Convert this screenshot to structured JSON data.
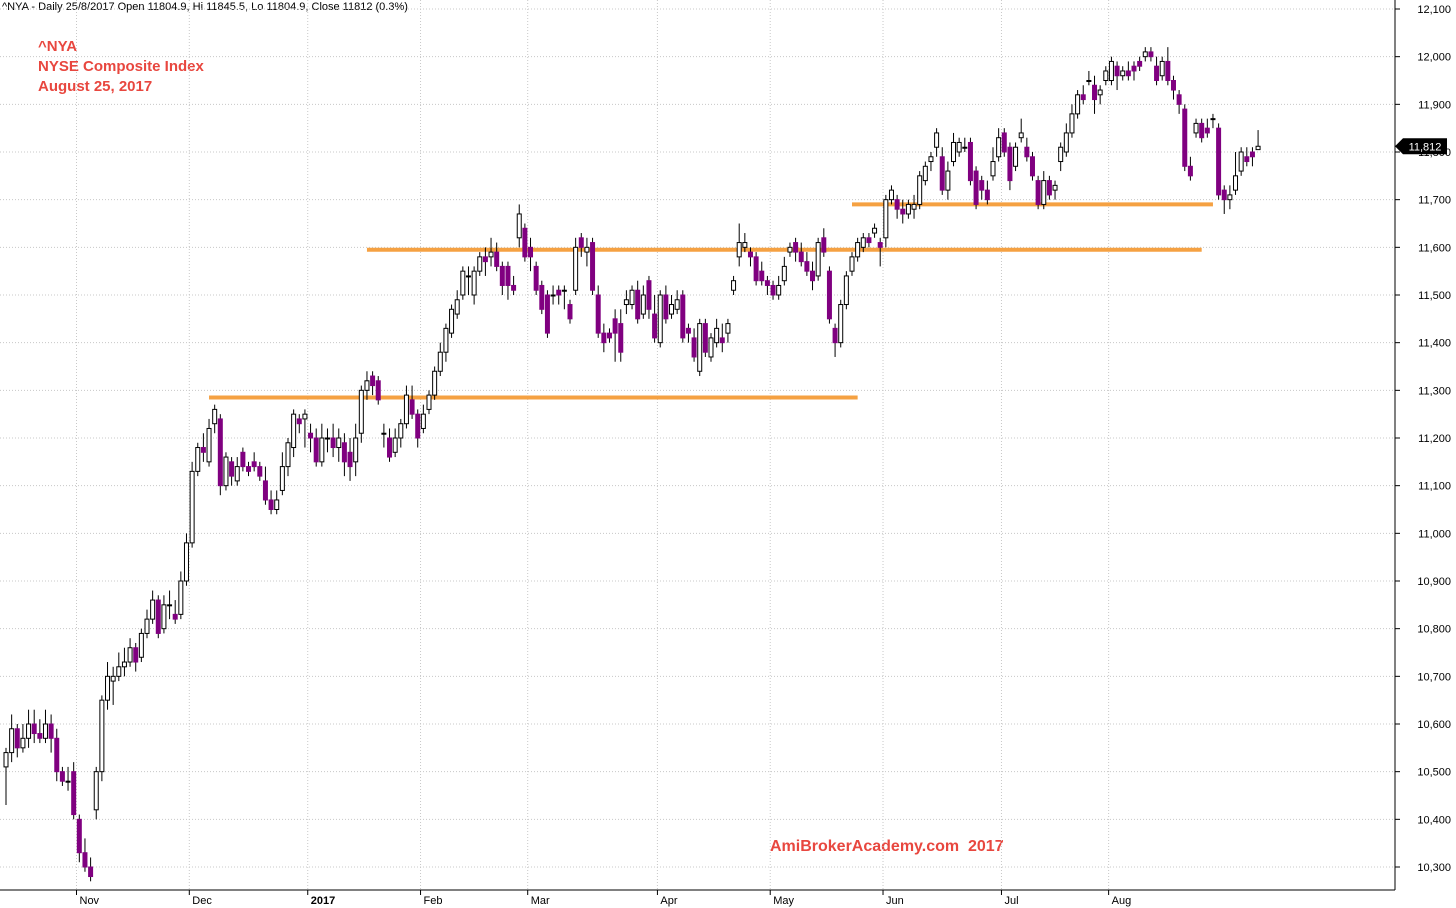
{
  "header": {
    "info_line": "^NYA - Daily 25/8/2017 Open 11804.9, Hi 11845.5, Lo 11804.9, Close 11812 (0.3%)"
  },
  "title_block": {
    "symbol": "^NYA",
    "name": "NYSE Composite Index",
    "date": "August 25, 2017"
  },
  "watermark": "AmiBrokerAcademy.com  2017",
  "last_price_label": "11,812",
  "chart_data": {
    "type": "candlestick",
    "period": "Daily",
    "xlabel": "",
    "ylabel": "",
    "x_tick_labels": [
      "Nov",
      "Dec",
      "2017",
      "Feb",
      "Mar",
      "Apr",
      "May",
      "Jun",
      "Jul",
      "Aug"
    ],
    "y_tick_labels": [
      "10,300",
      "10,400",
      "10,500",
      "10,600",
      "10,700",
      "10,800",
      "10,900",
      "11,000",
      "11,100",
      "11,200",
      "11,300",
      "11,400",
      "11,500",
      "11,600",
      "11,700",
      "11,800",
      "11,900",
      "12,000",
      "12,100"
    ],
    "ylim": [
      10275,
      12105
    ],
    "grid": true,
    "colors": {
      "up_candle": "#ffffff",
      "down_candle": "#800080",
      "outline": "#000000",
      "support_lines": "#f5a142",
      "title_text": "#e8473f"
    },
    "support_resistance_levels": [
      {
        "value": 11285,
        "from": "Dec 2016",
        "to": "May 2017"
      },
      {
        "value": 11595,
        "from": "Jan 2017",
        "to": "Aug 2017"
      },
      {
        "value": 11690,
        "from": "May 2017",
        "to": "Aug 2017"
      }
    ],
    "last_close": 11812,
    "candles": [
      [
        10510,
        10540,
        10430,
        10550
      ],
      [
        10540,
        10590,
        10520,
        10620
      ],
      [
        10590,
        10550,
        10530,
        10600
      ],
      [
        10550,
        10570,
        10540,
        10600
      ],
      [
        10570,
        10600,
        10550,
        10630
      ],
      [
        10600,
        10580,
        10560,
        10630
      ],
      [
        10580,
        10570,
        10560,
        10610
      ],
      [
        10570,
        10600,
        10560,
        10630
      ],
      [
        10600,
        10570,
        10540,
        10620
      ],
      [
        10570,
        10500,
        10480,
        10590
      ],
      [
        10500,
        10480,
        10470,
        10510
      ],
      [
        10480,
        10480,
        10460,
        10510
      ],
      [
        10500,
        10410,
        10400,
        10520
      ],
      [
        10400,
        10330,
        10310,
        10410
      ],
      [
        10330,
        10300,
        10290,
        10360
      ],
      [
        10300,
        10280,
        10270,
        10320
      ],
      [
        10420,
        10500,
        10400,
        10510
      ],
      [
        10500,
        10650,
        10480,
        10660
      ],
      [
        10650,
        10700,
        10630,
        10730
      ],
      [
        10690,
        10700,
        10640,
        10720
      ],
      [
        10700,
        10720,
        10690,
        10750
      ],
      [
        10720,
        10730,
        10700,
        10760
      ],
      [
        10730,
        10760,
        10720,
        10780
      ],
      [
        10760,
        10730,
        10710,
        10770
      ],
      [
        10740,
        10790,
        10730,
        10800
      ],
      [
        10790,
        10820,
        10780,
        10840
      ],
      [
        10820,
        10860,
        10810,
        10880
      ],
      [
        10860,
        10790,
        10780,
        10870
      ],
      [
        10800,
        10850,
        10790,
        10870
      ],
      [
        10850,
        10850,
        10820,
        10880
      ],
      [
        10830,
        10820,
        10810,
        10860
      ],
      [
        10830,
        10900,
        10820,
        10920
      ],
      [
        10900,
        10980,
        10890,
        11000
      ],
      [
        10980,
        11130,
        10970,
        11150
      ],
      [
        11130,
        11180,
        11120,
        11190
      ],
      [
        11180,
        11170,
        11150,
        11210
      ],
      [
        11150,
        11220,
        11140,
        11240
      ],
      [
        11230,
        11260,
        11210,
        11270
      ],
      [
        11240,
        11100,
        11080,
        11250
      ],
      [
        11100,
        11160,
        11090,
        11170
      ],
      [
        11150,
        11120,
        11100,
        11160
      ],
      [
        11110,
        11140,
        11100,
        11160
      ],
      [
        11170,
        11140,
        11130,
        11180
      ],
      [
        11140,
        11130,
        11120,
        11150
      ],
      [
        11150,
        11140,
        11130,
        11170
      ],
      [
        11140,
        11120,
        11110,
        11150
      ],
      [
        11110,
        11070,
        11060,
        11140
      ],
      [
        11070,
        11050,
        11040,
        11090
      ],
      [
        11050,
        11070,
        11040,
        11090
      ],
      [
        11090,
        11140,
        11080,
        11170
      ],
      [
        11140,
        11190,
        11120,
        11200
      ],
      [
        11180,
        11250,
        11160,
        11260
      ],
      [
        11240,
        11230,
        11210,
        11250
      ],
      [
        11240,
        11250,
        11180,
        11260
      ],
      [
        11210,
        11200,
        11170,
        11230
      ],
      [
        11200,
        11150,
        11140,
        11220
      ],
      [
        11150,
        11200,
        11140,
        11230
      ],
      [
        11200,
        11200,
        11170,
        11220
      ],
      [
        11200,
        11180,
        11160,
        11230
      ],
      [
        11180,
        11200,
        11150,
        11220
      ],
      [
        11190,
        11150,
        11120,
        11210
      ],
      [
        11170,
        11140,
        11110,
        11200
      ],
      [
        11150,
        11200,
        11120,
        11230
      ],
      [
        11210,
        11300,
        11190,
        11310
      ],
      [
        11300,
        11320,
        11280,
        11340
      ],
      [
        11330,
        11310,
        11290,
        11340
      ],
      [
        11320,
        11280,
        11270,
        11330
      ],
      [
        11210,
        11210,
        11180,
        11230
      ],
      [
        11200,
        11160,
        11150,
        11220
      ],
      [
        11170,
        11200,
        11160,
        11220
      ],
      [
        11200,
        11230,
        11180,
        11240
      ],
      [
        11230,
        11290,
        11220,
        11310
      ],
      [
        11280,
        11250,
        11240,
        11310
      ],
      [
        11250,
        11200,
        11180,
        11260
      ],
      [
        11220,
        11250,
        11210,
        11270
      ],
      [
        11260,
        11290,
        11250,
        11300
      ],
      [
        11290,
        11340,
        11280,
        11350
      ],
      [
        11340,
        11380,
        11330,
        11400
      ],
      [
        11380,
        11430,
        11360,
        11440
      ],
      [
        11420,
        11470,
        11410,
        11480
      ],
      [
        11460,
        11490,
        11450,
        11510
      ],
      [
        11500,
        11550,
        11490,
        11560
      ],
      [
        11540,
        11540,
        11500,
        11560
      ],
      [
        11500,
        11550,
        11480,
        11560
      ],
      [
        11550,
        11580,
        11540,
        11590
      ],
      [
        11580,
        11570,
        11540,
        11600
      ],
      [
        11580,
        11590,
        11560,
        11620
      ],
      [
        11590,
        11560,
        11550,
        11610
      ],
      [
        11560,
        11520,
        11500,
        11570
      ],
      [
        11560,
        11520,
        11490,
        11570
      ],
      [
        11520,
        11510,
        11500,
        11540
      ],
      [
        11620,
        11670,
        11600,
        11690
      ],
      [
        11640,
        11580,
        11570,
        11650
      ],
      [
        11600,
        11580,
        11550,
        11620
      ],
      [
        11560,
        11510,
        11500,
        11570
      ],
      [
        11520,
        11470,
        11460,
        11530
      ],
      [
        11500,
        11420,
        11410,
        11510
      ],
      [
        11500,
        11500,
        11480,
        11520
      ],
      [
        11510,
        11500,
        11480,
        11520
      ],
      [
        11510,
        11510,
        11470,
        11520
      ],
      [
        11480,
        11450,
        11440,
        11490
      ],
      [
        11510,
        11600,
        11500,
        11620
      ],
      [
        11620,
        11600,
        11580,
        11630
      ],
      [
        11590,
        11600,
        11560,
        11620
      ],
      [
        11610,
        11510,
        11500,
        11620
      ],
      [
        11500,
        11420,
        11410,
        11520
      ],
      [
        11420,
        11400,
        11380,
        11440
      ],
      [
        11420,
        11410,
        11400,
        11430
      ],
      [
        11450,
        11420,
        11360,
        11470
      ],
      [
        11440,
        11380,
        11360,
        11470
      ],
      [
        11480,
        11490,
        11460,
        11510
      ],
      [
        11480,
        11510,
        11470,
        11520
      ],
      [
        11510,
        11450,
        11440,
        11530
      ],
      [
        11460,
        11500,
        11450,
        11520
      ],
      [
        11530,
        11470,
        11450,
        11540
      ],
      [
        11460,
        11410,
        11400,
        11500
      ],
      [
        11400,
        11500,
        11390,
        11510
      ],
      [
        11500,
        11450,
        11440,
        11520
      ],
      [
        11460,
        11480,
        11450,
        11500
      ],
      [
        11470,
        11490,
        11460,
        11510
      ],
      [
        11500,
        11410,
        11400,
        11510
      ],
      [
        11430,
        11420,
        11400,
        11440
      ],
      [
        11410,
        11370,
        11360,
        11430
      ],
      [
        11340,
        11440,
        11330,
        11450
      ],
      [
        11440,
        11380,
        11370,
        11450
      ],
      [
        11370,
        11410,
        11360,
        11420
      ],
      [
        11400,
        11430,
        11390,
        11450
      ],
      [
        11410,
        11400,
        11380,
        11440
      ],
      [
        11420,
        11440,
        11400,
        11450
      ],
      [
        11510,
        11530,
        11500,
        11540
      ],
      [
        11580,
        11610,
        11560,
        11650
      ],
      [
        11600,
        11610,
        11590,
        11630
      ],
      [
        11590,
        11580,
        11560,
        11600
      ],
      [
        11580,
        11530,
        11520,
        11590
      ],
      [
        11550,
        11530,
        11520,
        11570
      ],
      [
        11530,
        11520,
        11500,
        11540
      ],
      [
        11520,
        11500,
        11490,
        11530
      ],
      [
        11500,
        11520,
        11490,
        11540
      ],
      [
        11530,
        11560,
        11520,
        11580
      ],
      [
        11590,
        11600,
        11580,
        11610
      ],
      [
        11610,
        11590,
        11570,
        11620
      ],
      [
        11590,
        11570,
        11560,
        11610
      ],
      [
        11570,
        11550,
        11540,
        11590
      ],
      [
        11550,
        11530,
        11510,
        11570
      ],
      [
        11540,
        11610,
        11530,
        11620
      ],
      [
        11620,
        11590,
        11580,
        11640
      ],
      [
        11550,
        11450,
        11440,
        11560
      ],
      [
        11430,
        11400,
        11370,
        11440
      ],
      [
        11400,
        11480,
        11390,
        11490
      ],
      [
        11480,
        11540,
        11470,
        11550
      ],
      [
        11550,
        11580,
        11540,
        11590
      ],
      [
        11580,
        11610,
        11570,
        11620
      ],
      [
        11600,
        11620,
        11590,
        11630
      ],
      [
        11620,
        11610,
        11600,
        11630
      ],
      [
        11630,
        11640,
        11620,
        11650
      ],
      [
        11610,
        11600,
        11560,
        11620
      ],
      [
        11620,
        11700,
        11600,
        11710
      ],
      [
        11700,
        11720,
        11690,
        11730
      ],
      [
        11700,
        11680,
        11660,
        11710
      ],
      [
        11680,
        11670,
        11650,
        11700
      ],
      [
        11670,
        11690,
        11660,
        11700
      ],
      [
        11680,
        11690,
        11660,
        11710
      ],
      [
        11690,
        11750,
        11680,
        11760
      ],
      [
        11740,
        11770,
        11730,
        11780
      ],
      [
        11780,
        11790,
        11760,
        11800
      ],
      [
        11810,
        11840,
        11790,
        11850
      ],
      [
        11790,
        11720,
        11710,
        11810
      ],
      [
        11720,
        11760,
        11700,
        11780
      ],
      [
        11780,
        11820,
        11770,
        11840
      ],
      [
        11800,
        11820,
        11790,
        11830
      ],
      [
        11810,
        11810,
        11800,
        11830
      ],
      [
        11820,
        11740,
        11730,
        11830
      ],
      [
        11760,
        11690,
        11680,
        11770
      ],
      [
        11740,
        11720,
        11700,
        11750
      ],
      [
        11720,
        11700,
        11690,
        11740
      ],
      [
        11750,
        11780,
        11740,
        11810
      ],
      [
        11790,
        11830,
        11780,
        11850
      ],
      [
        11840,
        11800,
        11790,
        11850
      ],
      [
        11810,
        11740,
        11720,
        11820
      ],
      [
        11770,
        11810,
        11760,
        11820
      ],
      [
        11830,
        11840,
        11820,
        11870
      ],
      [
        11810,
        11790,
        11780,
        11830
      ],
      [
        11790,
        11750,
        11740,
        11800
      ],
      [
        11740,
        11690,
        11680,
        11750
      ],
      [
        11690,
        11740,
        11680,
        11760
      ],
      [
        11740,
        11710,
        11700,
        11750
      ],
      [
        11720,
        11730,
        11700,
        11740
      ],
      [
        11780,
        11810,
        11760,
        11820
      ],
      [
        11800,
        11840,
        11790,
        11860
      ],
      [
        11840,
        11880,
        11830,
        11900
      ],
      [
        11880,
        11920,
        11870,
        11930
      ],
      [
        11920,
        11910,
        11900,
        11940
      ],
      [
        11950,
        11950,
        11940,
        11970
      ],
      [
        11940,
        11910,
        11880,
        11960
      ],
      [
        11920,
        11930,
        11900,
        11940
      ],
      [
        11950,
        11970,
        11940,
        11980
      ],
      [
        11950,
        11990,
        11940,
        12000
      ],
      [
        11980,
        11960,
        11930,
        11990
      ],
      [
        11960,
        11970,
        11950,
        11980
      ],
      [
        11970,
        11960,
        11950,
        11990
      ],
      [
        11980,
        11970,
        11950,
        11990
      ],
      [
        11990,
        11980,
        11970,
        12000
      ],
      [
        12000,
        12010,
        11990,
        12020
      ],
      [
        12010,
        12000,
        11990,
        12020
      ],
      [
        11980,
        11950,
        11940,
        12000
      ],
      [
        11960,
        11990,
        11950,
        12000
      ],
      [
        11990,
        11950,
        11940,
        12020
      ],
      [
        11950,
        11930,
        11910,
        11960
      ],
      [
        11920,
        11900,
        11880,
        11930
      ],
      [
        11890,
        11770,
        11760,
        11900
      ],
      [
        11770,
        11750,
        11740,
        11790
      ],
      [
        11840,
        11860,
        11830,
        11870
      ],
      [
        11860,
        11830,
        11820,
        11870
      ],
      [
        11850,
        11840,
        11830,
        11870
      ],
      [
        11870,
        11870,
        11850,
        11880
      ],
      [
        11850,
        11710,
        11700,
        11860
      ],
      [
        11720,
        11700,
        11670,
        11730
      ],
      [
        11700,
        11710,
        11680,
        11730
      ],
      [
        11720,
        11750,
        11710,
        11800
      ],
      [
        11760,
        11800,
        11750,
        11810
      ],
      [
        11790,
        11780,
        11770,
        11810
      ],
      [
        11800,
        11790,
        11770,
        11810
      ],
      [
        11805,
        11812,
        11805,
        11846
      ]
    ]
  }
}
